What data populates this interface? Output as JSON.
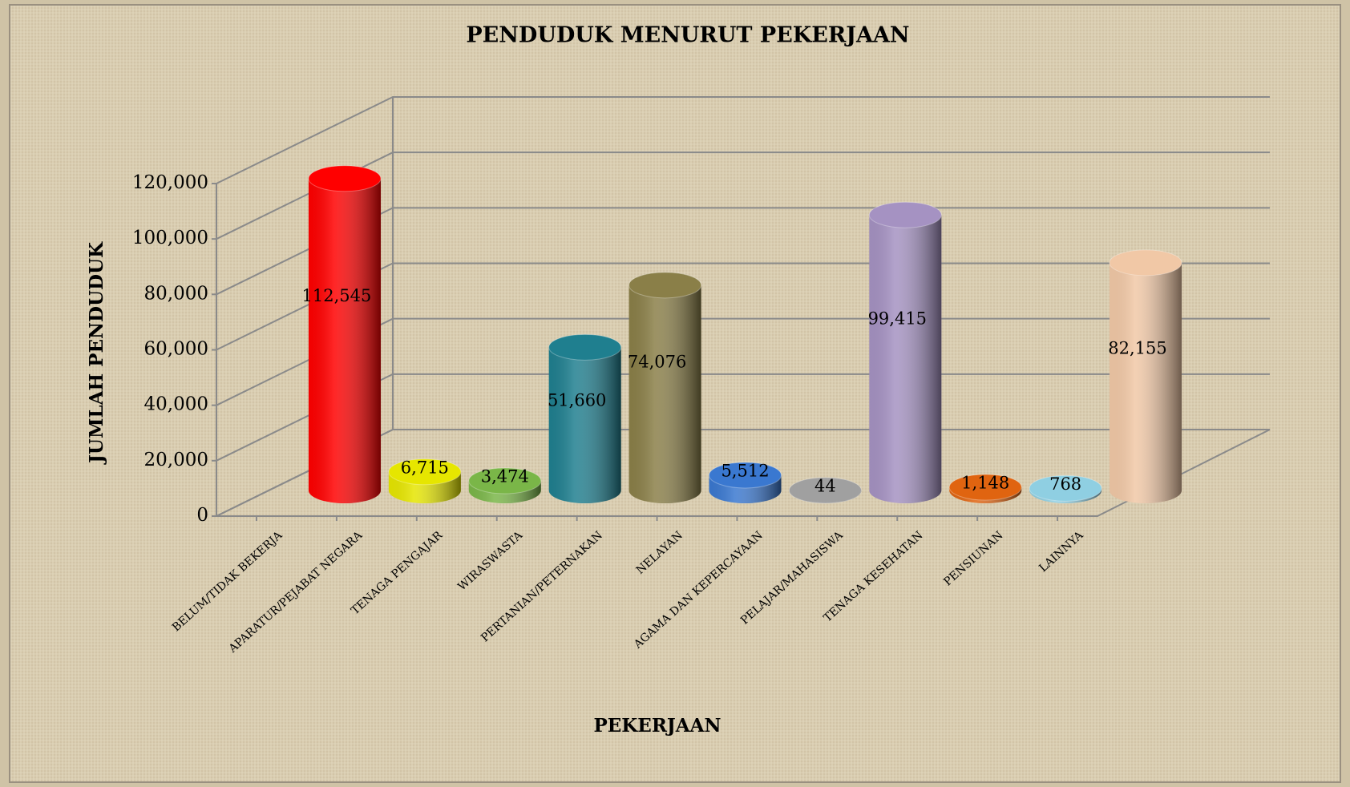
{
  "chart_data": {
    "type": "bar3d",
    "title": "PENDUDUK MENURUT PEKERJAAN",
    "x_label": "PEKERJAAN",
    "y_label": "JUMLAH PENDUDUK",
    "categories": [
      "BELUM/TIDAK BEKERJA",
      "APARATUR/PEJABAT NEGARA",
      "TENAGA PENGAJAR",
      "WIRASWASTA",
      "PERTANIAN/PETERNAKAN",
      "NELAYAN",
      "AGAMA DAN KEPERCAYAAN",
      "PELAJAR/MAHASISWA",
      "TENAGA KESEHATAN",
      "PENSIUNAN",
      "LAINNYA"
    ],
    "values": [
      112545,
      6715,
      3474,
      51660,
      74076,
      5512,
      44,
      99415,
      1148,
      768,
      82155
    ],
    "value_labels": [
      "112,545",
      "6,715",
      "3,474",
      "51,660",
      "74,076",
      "5,512",
      "44",
      "99,415",
      "1,148",
      "768",
      "82,155"
    ],
    "colors": [
      "#ff0000",
      "#e6e600",
      "#7ab648",
      "#1f7f8f",
      "#8a7f48",
      "#3a78d0",
      "#a0a0a0",
      "#a592c2",
      "#e06410",
      "#8fcfe2",
      "#f1c8a6"
    ],
    "ylim": [
      0,
      120000
    ],
    "yticks": [
      0,
      {
        "value": 20000,
        "label": "20,000"
      },
      {
        "value": 40000,
        "label": "40,000"
      },
      {
        "value": 60000,
        "label": "60,000"
      },
      {
        "value": 80000,
        "label": "80,000"
      },
      {
        "value": 100000,
        "label": "100,000"
      },
      {
        "value": 120000,
        "label": "120,000"
      }
    ],
    "grid": true
  }
}
